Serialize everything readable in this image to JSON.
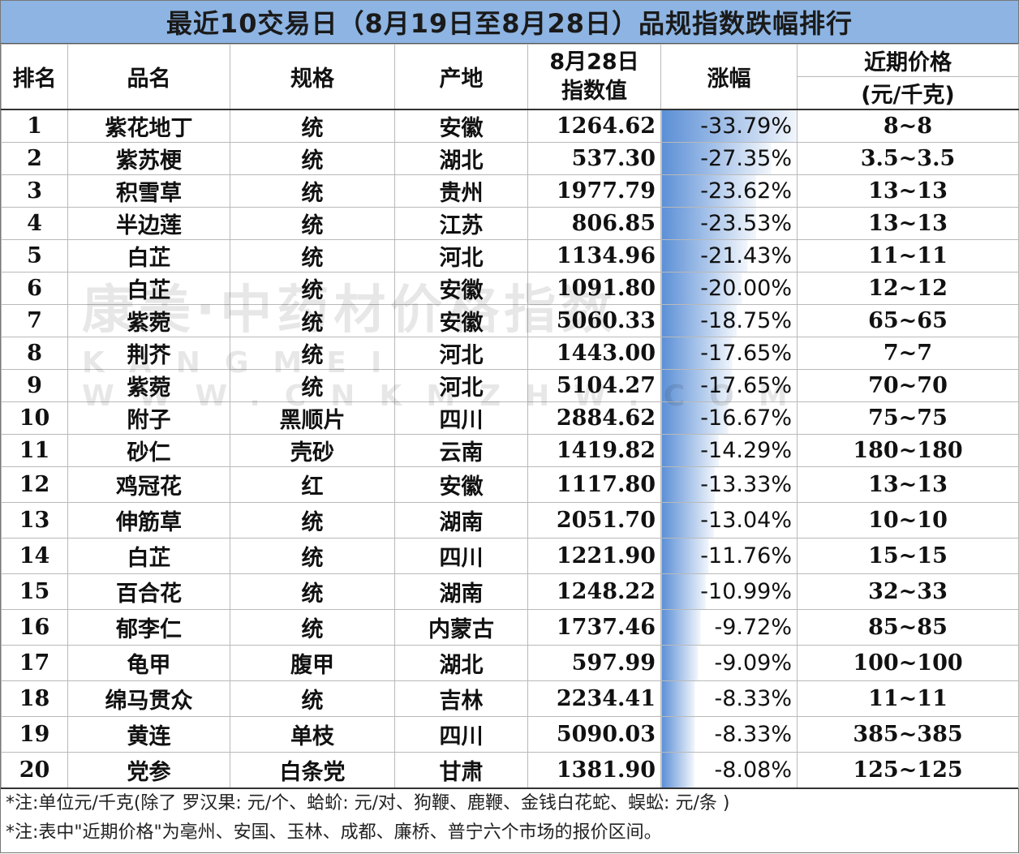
{
  "title": "最近10交易日（8月19日至8月28日）品规指数跌幅排行",
  "headers": {
    "rank": "排名",
    "name": "品名",
    "spec": "规格",
    "origin": "产地",
    "index_line1": "8月28日",
    "index_line2": "指数值",
    "change": "涨幅",
    "price_line1": "近期价格",
    "price_line2": "(元/千克)"
  },
  "rows": [
    {
      "rank": "1",
      "name": "紫花地丁",
      "spec": "统",
      "origin": "安徽",
      "index": "1264.62",
      "change": "-33.79%",
      "change_value": -33.79,
      "price": "8~8"
    },
    {
      "rank": "2",
      "name": "紫苏梗",
      "spec": "统",
      "origin": "湖北",
      "index": "537.30",
      "change": "-27.35%",
      "change_value": -27.35,
      "price": "3.5~3.5"
    },
    {
      "rank": "3",
      "name": "积雪草",
      "spec": "统",
      "origin": "贵州",
      "index": "1977.79",
      "change": "-23.62%",
      "change_value": -23.62,
      "price": "13~13"
    },
    {
      "rank": "4",
      "name": "半边莲",
      "spec": "统",
      "origin": "江苏",
      "index": "806.85",
      "change": "-23.53%",
      "change_value": -23.53,
      "price": "13~13"
    },
    {
      "rank": "5",
      "name": "白芷",
      "spec": "统",
      "origin": "河北",
      "index": "1134.96",
      "change": "-21.43%",
      "change_value": -21.43,
      "price": "11~11"
    },
    {
      "rank": "6",
      "name": "白芷",
      "spec": "统",
      "origin": "安徽",
      "index": "1091.80",
      "change": "-20.00%",
      "change_value": -20.0,
      "price": "12~12"
    },
    {
      "rank": "7",
      "name": "紫菀",
      "spec": "统",
      "origin": "安徽",
      "index": "5060.33",
      "change": "-18.75%",
      "change_value": -18.75,
      "price": "65~65"
    },
    {
      "rank": "8",
      "name": "荆芥",
      "spec": "统",
      "origin": "河北",
      "index": "1443.00",
      "change": "-17.65%",
      "change_value": -17.65,
      "price": "7~7"
    },
    {
      "rank": "9",
      "name": "紫菀",
      "spec": "统",
      "origin": "河北",
      "index": "5104.27",
      "change": "-17.65%",
      "change_value": -17.65,
      "price": "70~70"
    },
    {
      "rank": "10",
      "name": "附子",
      "spec": "黑顺片",
      "origin": "四川",
      "index": "2884.62",
      "change": "-16.67%",
      "change_value": -16.67,
      "price": "75~75"
    },
    {
      "rank": "11",
      "name": "砂仁",
      "spec": "壳砂",
      "origin": "云南",
      "index": "1419.82",
      "change": "-14.29%",
      "change_value": -14.29,
      "price": "180~180"
    },
    {
      "rank": "12",
      "name": "鸡冠花",
      "spec": "红",
      "origin": "安徽",
      "index": "1117.80",
      "change": "-13.33%",
      "change_value": -13.33,
      "price": "13~13"
    },
    {
      "rank": "13",
      "name": "伸筋草",
      "spec": "统",
      "origin": "湖南",
      "index": "2051.70",
      "change": "-13.04%",
      "change_value": -13.04,
      "price": "10~10"
    },
    {
      "rank": "14",
      "name": "白芷",
      "spec": "统",
      "origin": "四川",
      "index": "1221.90",
      "change": "-11.76%",
      "change_value": -11.76,
      "price": "15~15"
    },
    {
      "rank": "15",
      "name": "百合花",
      "spec": "统",
      "origin": "湖南",
      "index": "1248.22",
      "change": "-10.99%",
      "change_value": -10.99,
      "price": "32~33"
    },
    {
      "rank": "16",
      "name": "郁李仁",
      "spec": "统",
      "origin": "内蒙古",
      "index": "1737.46",
      "change": "-9.72%",
      "change_value": -9.72,
      "price": "85~85"
    },
    {
      "rank": "17",
      "name": "龟甲",
      "spec": "腹甲",
      "origin": "湖北",
      "index": "597.99",
      "change": "-9.09%",
      "change_value": -9.09,
      "price": "100~100"
    },
    {
      "rank": "18",
      "name": "绵马贯众",
      "spec": "统",
      "origin": "吉林",
      "index": "2234.41",
      "change": "-8.33%",
      "change_value": -8.33,
      "price": "11~11"
    },
    {
      "rank": "19",
      "name": "黄连",
      "spec": "单枝",
      "origin": "四川",
      "index": "5090.03",
      "change": "-8.33%",
      "change_value": -8.33,
      "price": "385~385"
    },
    {
      "rank": "20",
      "name": "党参",
      "spec": "白条党",
      "origin": "甘肃",
      "index": "1381.90",
      "change": "-8.08%",
      "change_value": -8.08,
      "price": "125~125"
    }
  ],
  "notes": [
    "*注:单位元/千克(除了 罗汉果: 元/个、蛤蚧: 元/对、狗鞭、鹿鞭、金钱白花蛇、蜈蚣: 元/条 )",
    "*注:表中\"近期价格\"为亳州、安国、玉林、成都、廉桥、普宁六个市场的报价区间。"
  ],
  "watermark": {
    "line1": "康美·中药材价格指数",
    "line2": "KANGMEI WWW.CNKMZHW.COM"
  },
  "colors": {
    "title_bg": "#8db4e2",
    "databar": "#5b8fd6"
  }
}
